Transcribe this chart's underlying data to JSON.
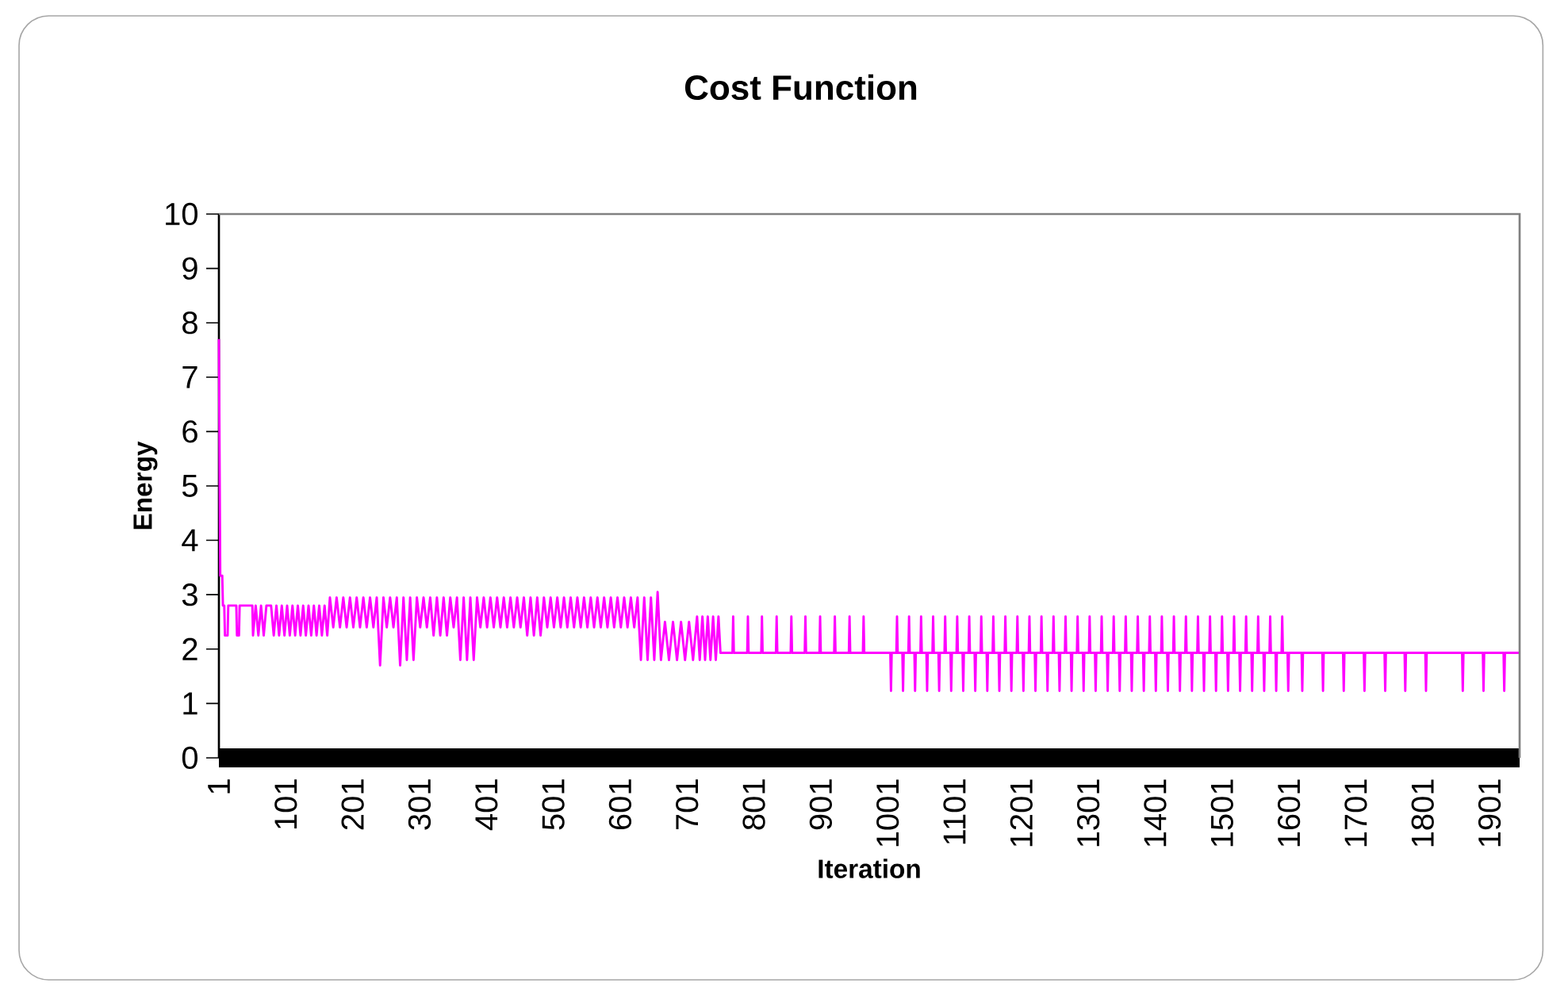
{
  "chart_data": {
    "type": "line",
    "title": "Cost Function",
    "xlabel": "Iteration",
    "ylabel": "Energy",
    "xlim": [
      1,
      1946
    ],
    "ylim": [
      0,
      10
    ],
    "xticks": [
      1,
      101,
      201,
      301,
      401,
      501,
      601,
      701,
      801,
      901,
      1001,
      1101,
      1201,
      1301,
      1401,
      1501,
      1601,
      1701,
      1801,
      1901
    ],
    "yticks": [
      0,
      1,
      2,
      3,
      4,
      5,
      6,
      7,
      8,
      9,
      10
    ],
    "x": [
      1,
      3,
      6,
      7,
      9,
      10,
      14,
      15,
      27,
      28,
      31,
      32,
      51,
      52,
      56,
      60,
      64,
      68,
      72,
      75,
      79,
      83,
      87,
      91,
      95,
      99,
      103,
      107,
      111,
      115,
      119,
      123,
      127,
      131,
      135,
      139,
      143,
      147,
      151,
      155,
      159,
      163,
      167,
      172,
      177,
      182,
      187,
      192,
      197,
      202,
      207,
      212,
      217,
      222,
      227,
      232,
      237,
      242,
      247,
      252,
      257,
      262,
      267,
      272,
      277,
      282,
      287,
      292,
      297,
      302,
      307,
      312,
      317,
      322,
      327,
      332,
      337,
      342,
      347,
      352,
      357,
      362,
      367,
      372,
      377,
      382,
      387,
      392,
      397,
      402,
      407,
      412,
      417,
      422,
      427,
      432,
      437,
      442,
      447,
      452,
      457,
      462,
      467,
      472,
      477,
      482,
      487,
      492,
      497,
      502,
      507,
      512,
      517,
      522,
      527,
      532,
      537,
      542,
      547,
      552,
      557,
      562,
      567,
      572,
      577,
      582,
      587,
      592,
      597,
      602,
      607,
      612,
      617,
      622,
      627,
      632,
      637,
      642,
      647,
      652,
      657,
      662,
      668,
      674,
      680,
      686,
      692,
      698,
      704,
      710,
      716,
      720,
      724,
      728,
      732,
      736,
      740,
      744,
      748,
      751,
      769,
      770,
      771,
      791,
      792,
      793,
      812,
      813,
      814,
      834,
      835,
      836,
      856,
      857,
      858,
      877,
      878,
      879,
      899,
      900,
      901,
      921,
      922,
      923,
      943,
      944,
      945,
      964,
      965,
      966,
      1005,
      1006,
      1007,
      1014,
      1015,
      1016,
      1023,
      1024,
      1025,
      1032,
      1033,
      1034,
      1041,
      1042,
      1043,
      1050,
      1051,
      1052,
      1059,
      1060,
      1061,
      1068,
      1069,
      1070,
      1077,
      1078,
      1079,
      1086,
      1087,
      1088,
      1095,
      1096,
      1097,
      1104,
      1105,
      1106,
      1113,
      1114,
      1115,
      1122,
      1123,
      1124,
      1131,
      1132,
      1133,
      1140,
      1141,
      1142,
      1149,
      1150,
      1151,
      1158,
      1159,
      1160,
      1167,
      1168,
      1169,
      1176,
      1177,
      1178,
      1185,
      1186,
      1187,
      1194,
      1195,
      1196,
      1203,
      1204,
      1205,
      1212,
      1213,
      1214,
      1221,
      1222,
      1223,
      1230,
      1231,
      1232,
      1239,
      1240,
      1241,
      1248,
      1249,
      1250,
      1257,
      1258,
      1259,
      1266,
      1267,
      1268,
      1275,
      1276,
      1277,
      1284,
      1285,
      1286,
      1293,
      1294,
      1295,
      1302,
      1303,
      1304,
      1311,
      1312,
      1313,
      1320,
      1321,
      1322,
      1329,
      1330,
      1331,
      1338,
      1339,
      1340,
      1347,
      1348,
      1349,
      1356,
      1357,
      1358,
      1365,
      1366,
      1367,
      1374,
      1375,
      1376,
      1383,
      1384,
      1385,
      1392,
      1393,
      1394,
      1401,
      1402,
      1403,
      1410,
      1411,
      1412,
      1419,
      1420,
      1421,
      1428,
      1429,
      1430,
      1437,
      1438,
      1439,
      1446,
      1447,
      1448,
      1455,
      1456,
      1457,
      1464,
      1465,
      1466,
      1473,
      1474,
      1475,
      1482,
      1483,
      1484,
      1491,
      1492,
      1493,
      1500,
      1501,
      1502,
      1509,
      1510,
      1511,
      1518,
      1519,
      1520,
      1527,
      1528,
      1529,
      1536,
      1537,
      1538,
      1545,
      1546,
      1547,
      1554,
      1555,
      1556,
      1563,
      1564,
      1565,
      1572,
      1573,
      1574,
      1581,
      1582,
      1583,
      1590,
      1591,
      1592,
      1599,
      1600,
      1601,
      1620,
      1621,
      1622,
      1651,
      1652,
      1653,
      1682,
      1683,
      1684,
      1713,
      1714,
      1715,
      1744,
      1745,
      1746,
      1774,
      1775,
      1776,
      1805,
      1806,
      1807,
      1860,
      1861,
      1862,
      1891,
      1892,
      1893,
      1922,
      1923,
      1924,
      1946
    ],
    "series": [
      {
        "color": "#ff00ff",
        "values": [
          7.7,
          3.35,
          3.35,
          2.8,
          2.8,
          2.25,
          2.25,
          2.8,
          2.8,
          2.25,
          2.25,
          2.8,
          2.8,
          2.25,
          2.8,
          2.25,
          2.8,
          2.25,
          2.8,
          2.8,
          2.8,
          2.25,
          2.8,
          2.25,
          2.8,
          2.25,
          2.8,
          2.25,
          2.8,
          2.25,
          2.8,
          2.25,
          2.8,
          2.25,
          2.8,
          2.25,
          2.8,
          2.25,
          2.8,
          2.25,
          2.8,
          2.25,
          2.95,
          2.4,
          2.95,
          2.4,
          2.95,
          2.4,
          2.95,
          2.4,
          2.95,
          2.4,
          2.95,
          2.4,
          2.95,
          2.4,
          2.95,
          1.7,
          2.95,
          2.4,
          2.95,
          2.4,
          2.95,
          1.7,
          2.95,
          1.8,
          2.95,
          1.8,
          2.95,
          2.4,
          2.95,
          2.4,
          2.95,
          2.25,
          2.95,
          2.25,
          2.95,
          2.25,
          2.95,
          2.4,
          2.95,
          1.8,
          2.95,
          1.8,
          2.95,
          1.8,
          2.95,
          2.4,
          2.95,
          2.4,
          2.95,
          2.4,
          2.95,
          2.4,
          2.95,
          2.4,
          2.95,
          2.4,
          2.95,
          2.4,
          2.95,
          2.25,
          2.95,
          2.25,
          2.95,
          2.25,
          2.95,
          2.4,
          2.95,
          2.4,
          2.95,
          2.4,
          2.95,
          2.4,
          2.95,
          2.4,
          2.95,
          2.4,
          2.95,
          2.4,
          2.95,
          2.4,
          2.95,
          2.4,
          2.95,
          2.4,
          2.95,
          2.4,
          2.95,
          2.4,
          2.95,
          2.4,
          2.95,
          2.4,
          2.95,
          1.8,
          2.95,
          1.8,
          2.95,
          1.8,
          3.05,
          1.8,
          2.5,
          1.8,
          2.5,
          1.8,
          2.5,
          1.8,
          2.5,
          1.8,
          2.6,
          1.8,
          2.6,
          1.8,
          2.6,
          1.8,
          2.6,
          1.8,
          2.6,
          1.93,
          1.93,
          2.6,
          1.93,
          1.93,
          2.6,
          1.93,
          1.93,
          2.6,
          1.93,
          1.93,
          2.6,
          1.93,
          1.93,
          2.6,
          1.93,
          1.93,
          2.6,
          1.93,
          1.93,
          2.6,
          1.93,
          1.93,
          2.6,
          1.93,
          1.93,
          2.6,
          1.93,
          1.93,
          2.6,
          1.93,
          1.93,
          1.23,
          1.93,
          1.93,
          2.6,
          1.93,
          1.93,
          1.23,
          1.93,
          1.93,
          2.6,
          1.93,
          1.93,
          1.23,
          1.93,
          1.93,
          2.6,
          1.93,
          1.93,
          1.23,
          1.93,
          1.93,
          2.6,
          1.93,
          1.93,
          1.23,
          1.93,
          1.93,
          2.6,
          1.93,
          1.93,
          1.23,
          1.93,
          1.93,
          2.6,
          1.93,
          1.93,
          1.23,
          1.93,
          1.93,
          2.6,
          1.93,
          1.93,
          1.23,
          1.93,
          1.93,
          2.6,
          1.93,
          1.93,
          1.23,
          1.93,
          1.93,
          2.6,
          1.93,
          1.93,
          1.23,
          1.93,
          1.93,
          2.6,
          1.93,
          1.93,
          1.23,
          1.93,
          1.93,
          2.6,
          1.93,
          1.93,
          1.23,
          1.93,
          1.93,
          2.6,
          1.93,
          1.93,
          1.23,
          1.93,
          1.93,
          2.6,
          1.93,
          1.93,
          1.23,
          1.93,
          1.93,
          2.6,
          1.93,
          1.93,
          1.23,
          1.93,
          1.93,
          2.6,
          1.93,
          1.93,
          1.23,
          1.93,
          1.93,
          2.6,
          1.93,
          1.93,
          1.23,
          1.93,
          1.93,
          2.6,
          1.93,
          1.93,
          1.23,
          1.93,
          1.93,
          2.6,
          1.93,
          1.93,
          1.23,
          1.93,
          1.93,
          2.6,
          1.93,
          1.93,
          1.23,
          1.93,
          1.93,
          2.6,
          1.93,
          1.93,
          1.23,
          1.93,
          1.93,
          2.6,
          1.93,
          1.93,
          1.23,
          1.93,
          1.93,
          2.6,
          1.93,
          1.93,
          1.23,
          1.93,
          1.93,
          2.6,
          1.93,
          1.93,
          1.23,
          1.93,
          1.93,
          2.6,
          1.93,
          1.93,
          1.23,
          1.93,
          1.93,
          2.6,
          1.93,
          1.93,
          1.23,
          1.93,
          1.93,
          2.6,
          1.93,
          1.93,
          1.23,
          1.93,
          1.93,
          2.6,
          1.93,
          1.93,
          1.23,
          1.93,
          1.93,
          2.6,
          1.93,
          1.93,
          1.23,
          1.93,
          1.93,
          2.6,
          1.93,
          1.93,
          1.23,
          1.93,
          1.93,
          2.6,
          1.93,
          1.93,
          1.23,
          1.93,
          1.93,
          2.6,
          1.93,
          1.93,
          1.23,
          1.93,
          1.93,
          2.6,
          1.93,
          1.93,
          1.23,
          1.93,
          1.93,
          2.6,
          1.93,
          1.93,
          1.23,
          1.93,
          1.93,
          1.23,
          1.93,
          1.93,
          1.23,
          1.93,
          1.93,
          1.23,
          1.93,
          1.93,
          1.23,
          1.93,
          1.93,
          1.23,
          1.93,
          1.93,
          1.23,
          1.93,
          1.93,
          1.23,
          1.93,
          1.93,
          1.23,
          1.93,
          1.93,
          1.23,
          1.93,
          1.93,
          1.23,
          1.93,
          1.93
        ]
      }
    ]
  }
}
